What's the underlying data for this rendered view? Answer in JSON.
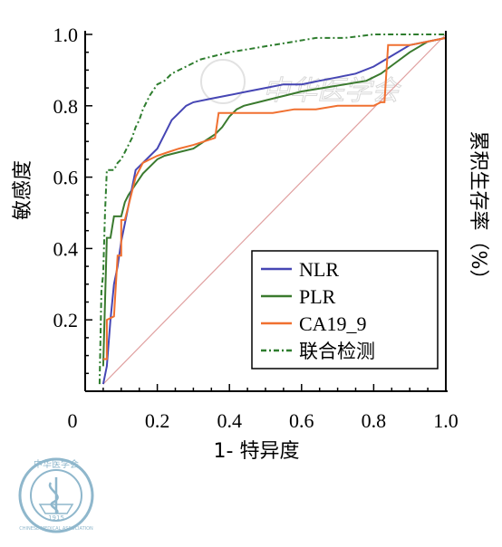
{
  "chart_data": {
    "type": "line",
    "xlabel": "1- 特异度",
    "ylabel": "敏感度",
    "ylabel_right": "累积生存率（%）",
    "xlim": [
      0,
      1
    ],
    "ylim": [
      0,
      1
    ],
    "x_ticks": [
      "0",
      "0.2",
      "0.4",
      "0.6",
      "0.8",
      "1.0"
    ],
    "y_ticks": [
      "0.2",
      "0.4",
      "0.6",
      "0.8",
      "1.0"
    ],
    "legend_position": "lower-right",
    "reference_line": {
      "points": [
        [
          0.05,
          0.02
        ],
        [
          1.0,
          1.0
        ]
      ],
      "color": "#e0a0a0"
    },
    "series": [
      {
        "name": "NLR",
        "color": "#4646b4",
        "dash": "solid",
        "points": [
          [
            0.05,
            0.02
          ],
          [
            0.06,
            0.07
          ],
          [
            0.07,
            0.2
          ],
          [
            0.08,
            0.3
          ],
          [
            0.09,
            0.35
          ],
          [
            0.1,
            0.42
          ],
          [
            0.11,
            0.47
          ],
          [
            0.12,
            0.52
          ],
          [
            0.13,
            0.57
          ],
          [
            0.14,
            0.62
          ],
          [
            0.16,
            0.64
          ],
          [
            0.18,
            0.66
          ],
          [
            0.2,
            0.68
          ],
          [
            0.22,
            0.72
          ],
          [
            0.24,
            0.76
          ],
          [
            0.26,
            0.78
          ],
          [
            0.28,
            0.8
          ],
          [
            0.3,
            0.81
          ],
          [
            0.35,
            0.82
          ],
          [
            0.4,
            0.83
          ],
          [
            0.45,
            0.84
          ],
          [
            0.5,
            0.85
          ],
          [
            0.55,
            0.86
          ],
          [
            0.6,
            0.86
          ],
          [
            0.65,
            0.87
          ],
          [
            0.7,
            0.88
          ],
          [
            0.75,
            0.89
          ],
          [
            0.8,
            0.91
          ],
          [
            0.85,
            0.94
          ],
          [
            0.9,
            0.97
          ],
          [
            0.95,
            0.98
          ],
          [
            1.0,
            0.99
          ]
        ]
      },
      {
        "name": "PLR",
        "color": "#3a7a2e",
        "dash": "solid",
        "points": [
          [
            0.05,
            0.07
          ],
          [
            0.06,
            0.43
          ],
          [
            0.07,
            0.43
          ],
          [
            0.08,
            0.49
          ],
          [
            0.1,
            0.49
          ],
          [
            0.11,
            0.53
          ],
          [
            0.12,
            0.55
          ],
          [
            0.14,
            0.58
          ],
          [
            0.16,
            0.61
          ],
          [
            0.18,
            0.63
          ],
          [
            0.2,
            0.65
          ],
          [
            0.22,
            0.66
          ],
          [
            0.26,
            0.67
          ],
          [
            0.3,
            0.68
          ],
          [
            0.33,
            0.7
          ],
          [
            0.36,
            0.72
          ],
          [
            0.38,
            0.74
          ],
          [
            0.4,
            0.77
          ],
          [
            0.42,
            0.79
          ],
          [
            0.44,
            0.8
          ],
          [
            0.48,
            0.81
          ],
          [
            0.52,
            0.82
          ],
          [
            0.56,
            0.83
          ],
          [
            0.6,
            0.84
          ],
          [
            0.66,
            0.85
          ],
          [
            0.72,
            0.86
          ],
          [
            0.78,
            0.87
          ],
          [
            0.82,
            0.89
          ],
          [
            0.86,
            0.92
          ],
          [
            0.9,
            0.95
          ],
          [
            0.95,
            0.98
          ],
          [
            1.0,
            0.99
          ]
        ]
      },
      {
        "name": "CA19_9",
        "color": "#f07030",
        "dash": "solid",
        "points": [
          [
            0.05,
            0.09
          ],
          [
            0.06,
            0.09
          ],
          [
            0.06,
            0.2
          ],
          [
            0.08,
            0.21
          ],
          [
            0.09,
            0.38
          ],
          [
            0.1,
            0.38
          ],
          [
            0.1,
            0.48
          ],
          [
            0.11,
            0.48
          ],
          [
            0.12,
            0.52
          ],
          [
            0.13,
            0.56
          ],
          [
            0.14,
            0.6
          ],
          [
            0.15,
            0.62
          ],
          [
            0.16,
            0.64
          ],
          [
            0.18,
            0.65
          ],
          [
            0.2,
            0.66
          ],
          [
            0.23,
            0.67
          ],
          [
            0.26,
            0.68
          ],
          [
            0.3,
            0.69
          ],
          [
            0.33,
            0.7
          ],
          [
            0.36,
            0.71
          ],
          [
            0.37,
            0.78
          ],
          [
            0.4,
            0.78
          ],
          [
            0.44,
            0.78
          ],
          [
            0.48,
            0.78
          ],
          [
            0.52,
            0.78
          ],
          [
            0.58,
            0.79
          ],
          [
            0.64,
            0.79
          ],
          [
            0.7,
            0.8
          ],
          [
            0.75,
            0.8
          ],
          [
            0.8,
            0.8
          ],
          [
            0.82,
            0.81
          ],
          [
            0.83,
            0.81
          ],
          [
            0.84,
            0.97
          ],
          [
            0.9,
            0.97
          ],
          [
            0.95,
            0.98
          ],
          [
            1.0,
            0.99
          ]
        ]
      },
      {
        "name": "联合检测",
        "color": "#2e7d2e",
        "dash": "dashdot",
        "points": [
          [
            0.04,
            0.02
          ],
          [
            0.045,
            0.28
          ],
          [
            0.05,
            0.33
          ],
          [
            0.055,
            0.5
          ],
          [
            0.06,
            0.62
          ],
          [
            0.07,
            0.62
          ],
          [
            0.08,
            0.62
          ],
          [
            0.09,
            0.64
          ],
          [
            0.1,
            0.65
          ],
          [
            0.11,
            0.67
          ],
          [
            0.12,
            0.69
          ],
          [
            0.13,
            0.71
          ],
          [
            0.14,
            0.74
          ],
          [
            0.15,
            0.76
          ],
          [
            0.16,
            0.79
          ],
          [
            0.18,
            0.83
          ],
          [
            0.2,
            0.86
          ],
          [
            0.22,
            0.87
          ],
          [
            0.24,
            0.89
          ],
          [
            0.26,
            0.9
          ],
          [
            0.28,
            0.91
          ],
          [
            0.3,
            0.92
          ],
          [
            0.32,
            0.93
          ],
          [
            0.36,
            0.94
          ],
          [
            0.4,
            0.95
          ],
          [
            0.46,
            0.96
          ],
          [
            0.52,
            0.97
          ],
          [
            0.58,
            0.98
          ],
          [
            0.64,
            0.99
          ],
          [
            0.72,
            0.99
          ],
          [
            0.8,
            1.0
          ],
          [
            0.9,
            1.0
          ],
          [
            1.0,
            1.0
          ]
        ]
      }
    ]
  },
  "legend": {
    "items": [
      {
        "label": "NLR",
        "color": "#4646b4",
        "dash": "solid"
      },
      {
        "label": "PLR",
        "color": "#3a7a2e",
        "dash": "solid"
      },
      {
        "label": "CA19_9",
        "color": "#f07030",
        "dash": "solid"
      },
      {
        "label": "联合检测",
        "color": "#2e7d2e",
        "dash": "dashdot"
      }
    ]
  },
  "watermark": {
    "text": "中华医学会",
    "seal_text": "中华医学会",
    "seal_sub": "CHINESE MEDICAL ASSOCIATION",
    "seal_year": "1915"
  }
}
